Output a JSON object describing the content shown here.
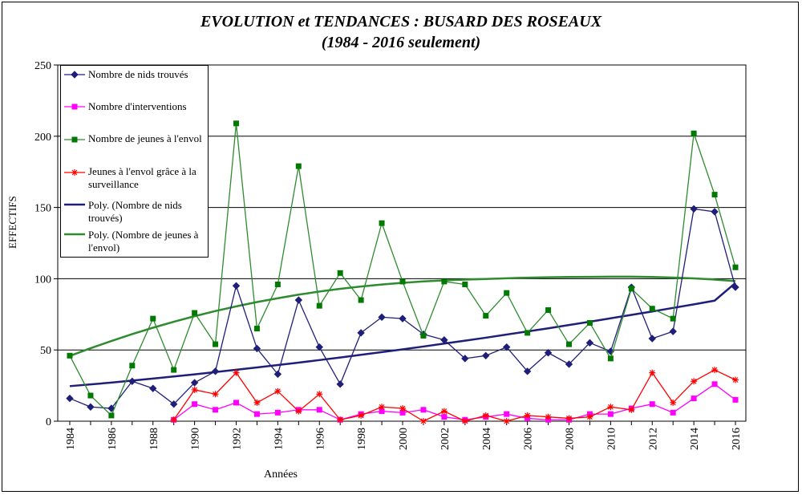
{
  "chart_data": {
    "type": "line",
    "title": "EVOLUTION et TENDANCES : BUSARD DES ROSEAUX",
    "subtitle": "(1984 - 2016 seulement)",
    "xlabel": "Années",
    "ylabel": "EFFECTIFS",
    "x": [
      1984,
      1985,
      1986,
      1987,
      1988,
      1989,
      1990,
      1991,
      1992,
      1993,
      1994,
      1995,
      1996,
      1997,
      1998,
      1999,
      2000,
      2001,
      2002,
      2003,
      2004,
      2005,
      2006,
      2007,
      2008,
      2009,
      2010,
      2011,
      2012,
      2013,
      2014,
      2015,
      2016
    ],
    "xticks": [
      1984,
      1986,
      1988,
      1990,
      1992,
      1994,
      1996,
      1998,
      2000,
      2002,
      2004,
      2006,
      2008,
      2010,
      2012,
      2014,
      2016
    ],
    "ylim": [
      0,
      250
    ],
    "yticks": [
      0,
      50,
      100,
      150,
      200,
      250
    ],
    "grid": true,
    "legend_position": "top-left",
    "series": [
      {
        "name": "Nombre de nids trouvés",
        "color": "#1f1f7a",
        "marker": "diamond",
        "values": [
          16,
          10,
          9,
          28,
          23,
          12,
          27,
          35,
          95,
          51,
          33,
          85,
          52,
          26,
          62,
          73,
          72,
          61,
          57,
          44,
          46,
          52,
          35,
          48,
          40,
          55,
          49,
          94,
          58,
          63,
          149,
          147,
          94
        ]
      },
      {
        "name": "Nombre d'interventions",
        "color": "#ff00ff",
        "marker": "square",
        "values": [
          null,
          null,
          null,
          null,
          null,
          1,
          12,
          8,
          13,
          5,
          6,
          8,
          8,
          1,
          5,
          7,
          6,
          8,
          3,
          1,
          3,
          5,
          2,
          1,
          1,
          5,
          5,
          9,
          12,
          6,
          16,
          26,
          15
        ]
      },
      {
        "name": "Nombre de jeunes à l'envol",
        "color": "#2e8b2e",
        "marker": "square",
        "marker_color": "#007a00",
        "values": [
          46,
          18,
          4,
          39,
          72,
          36,
          76,
          54,
          209,
          65,
          96,
          179,
          81,
          104,
          85,
          139,
          98,
          60,
          98,
          96,
          74,
          90,
          62,
          78,
          54,
          69,
          44,
          93,
          79,
          72,
          202,
          159,
          108
        ]
      },
      {
        "name": "Jeunes à l'envol grâce à la surveillance",
        "color": "#ff0000",
        "marker": "star",
        "values": [
          null,
          null,
          null,
          null,
          null,
          1,
          22,
          19,
          34,
          13,
          21,
          7,
          19,
          1,
          4,
          10,
          9,
          0,
          7,
          0,
          4,
          0,
          4,
          3,
          2,
          3,
          10,
          8,
          34,
          13,
          28,
          36,
          29
        ]
      },
      {
        "name": "Poly. (Nombre de nids trouvés)",
        "color": "#1f1f7a",
        "marker": "none",
        "trend": true,
        "values": [
          24.6,
          25.8,
          27.1,
          28.5,
          29.9,
          31.4,
          32.9,
          34.5,
          36.1,
          37.7,
          39.4,
          41.1,
          42.9,
          44.7,
          46.6,
          48.5,
          50.4,
          52.4,
          54.5,
          56.5,
          58.6,
          60.8,
          63.0,
          65.2,
          67.5,
          69.8,
          72.2,
          74.6,
          77.0,
          79.5,
          82.0,
          84.6,
          97.0
        ]
      },
      {
        "name": "Poly. (Nombre de jeunes à l'envol)",
        "color": "#2e8b2e",
        "marker": "none",
        "trend": true,
        "values": [
          45.8,
          51.2,
          56.3,
          61.1,
          65.6,
          69.8,
          73.7,
          77.3,
          80.6,
          83.6,
          86.3,
          88.8,
          91.0,
          92.9,
          94.5,
          95.9,
          97.1,
          98.1,
          98.8,
          99.4,
          99.8,
          100.3,
          100.7,
          101.0,
          101.2,
          101.3,
          101.4,
          101.4,
          101.2,
          100.8,
          100.2,
          99.4,
          98.3
        ]
      }
    ]
  }
}
